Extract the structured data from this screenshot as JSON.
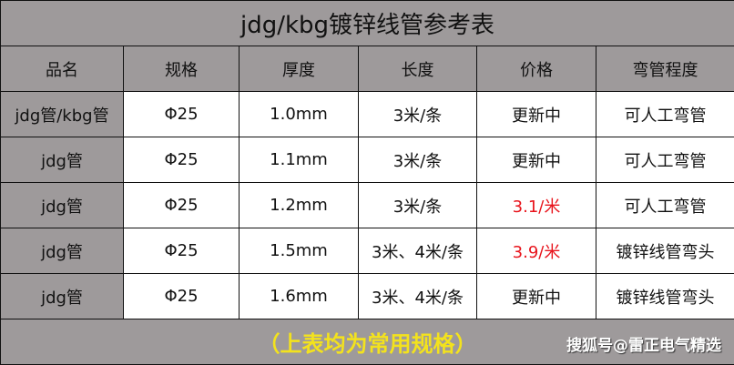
{
  "title": "jdg/kbg镀锌线管参考表",
  "headers": [
    "品名",
    "规格",
    "厚度",
    "长度",
    "价格",
    "弯管程度"
  ],
  "rows": [
    [
      "jdg管/kbg管",
      "Φ25",
      "1.0mm",
      "3米/条",
      "更新中",
      "可人工弯管"
    ],
    [
      "jdg管",
      "Φ25",
      "1.1mm",
      "3米/条",
      "更新中",
      "可人工弯管"
    ],
    [
      "jdg管",
      "Φ25",
      "1.2mm",
      "3米/条",
      "3.1/米",
      "可人工弯管"
    ],
    [
      "jdg管",
      "Φ25",
      "1.5mm",
      "3米、4米/条",
      "3.9/米",
      "镀锌线管弯头"
    ],
    [
      "jdg管",
      "Φ25",
      "1.6mm",
      "3米、4米/条",
      "更新中",
      "镀锌线管弯头"
    ]
  ],
  "highlighted_prices": [
    "3.1/米",
    "3.9/米"
  ],
  "footer_note": "（上表均为常用规格）",
  "watermark": "搜狐号@雷正电气精选",
  "colors": {
    "background": "#9e9a9b",
    "price_highlight": "#e8141c",
    "note": "#f3e21d"
  }
}
